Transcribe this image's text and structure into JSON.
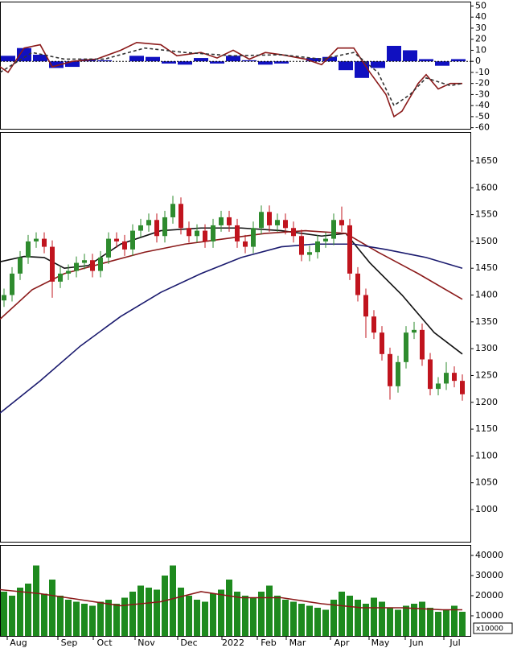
{
  "chart_data": [
    {
      "type": "macd",
      "xlim": [
        0,
        117
      ],
      "ylim": [
        -61,
        54
      ],
      "yticks": [
        50,
        40,
        30,
        20,
        10,
        0,
        -10,
        -20,
        -30,
        -40,
        -50,
        -60
      ],
      "histogram": {
        "color": "#1010c0",
        "x": [
          2,
          6,
          10,
          14,
          18,
          22,
          26,
          30,
          34,
          38,
          42,
          46,
          50,
          54,
          58,
          62,
          66,
          70,
          74,
          78,
          82,
          86,
          90,
          94,
          98,
          102,
          106,
          110,
          114
        ],
        "values": [
          5,
          12,
          6,
          -6,
          -5,
          2,
          1,
          0,
          5,
          4,
          -2,
          -3,
          3,
          -2,
          5,
          1,
          -3,
          -2,
          0,
          3,
          4,
          -8,
          -15,
          -6,
          14,
          10,
          2,
          -4,
          2
        ]
      },
      "lines": [
        {
          "color": "#8b1a1a",
          "dashed": false,
          "x": [
            0,
            2,
            6,
            10,
            13,
            18,
            24,
            30,
            34,
            40,
            44,
            50,
            54,
            58,
            62,
            66,
            70,
            76,
            80,
            84,
            88,
            92,
            96,
            98,
            100,
            104,
            106,
            109,
            112,
            115
          ],
          "values": [
            -5,
            -10,
            12,
            15,
            -5,
            0,
            2,
            10,
            17,
            15,
            5,
            8,
            3,
            10,
            2,
            8,
            6,
            2,
            -3,
            12,
            12,
            -10,
            -30,
            -50,
            -45,
            -20,
            -12,
            -25,
            -20,
            -20
          ]
        },
        {
          "color": "#333333",
          "dashed": true,
          "x": [
            0,
            8,
            16,
            26,
            36,
            46,
            58,
            70,
            80,
            88,
            94,
            98,
            102,
            106,
            112,
            115
          ],
          "values": [
            -10,
            8,
            2,
            2,
            12,
            8,
            5,
            6,
            2,
            8,
            -10,
            -40,
            -30,
            -15,
            -22,
            -20
          ]
        }
      ]
    },
    {
      "type": "candlestick",
      "xlim": [
        0,
        117
      ],
      "ylim": [
        940,
        1704
      ],
      "yticks": [
        1650,
        1600,
        1550,
        1500,
        1450,
        1400,
        1350,
        1300,
        1250,
        1200,
        1150,
        1100,
        1050,
        1000
      ],
      "up_color": "#2e8b2e",
      "down_color": "#c0141e",
      "candles": {
        "x": [
          1,
          3,
          5,
          7,
          9,
          11,
          13,
          15,
          17,
          19,
          21,
          23,
          25,
          27,
          29,
          31,
          33,
          35,
          37,
          39,
          41,
          43,
          45,
          47,
          49,
          51,
          53,
          55,
          57,
          59,
          61,
          63,
          65,
          67,
          69,
          71,
          73,
          75,
          77,
          79,
          81,
          83,
          85,
          87,
          89,
          91,
          93,
          95,
          97,
          99,
          101,
          103,
          105,
          107,
          109,
          111,
          113,
          115
        ],
        "open": [
          1390,
          1400,
          1440,
          1470,
          1500,
          1505,
          1490,
          1425,
          1440,
          1445,
          1460,
          1465,
          1445,
          1470,
          1505,
          1500,
          1485,
          1520,
          1530,
          1540,
          1510,
          1545,
          1570,
          1525,
          1510,
          1520,
          1500,
          1530,
          1545,
          1530,
          1500,
          1490,
          1525,
          1555,
          1530,
          1540,
          1525,
          1510,
          1475,
          1480,
          1500,
          1505,
          1540,
          1530,
          1440,
          1400,
          1360,
          1330,
          1290,
          1230,
          1275,
          1330,
          1335,
          1280,
          1225,
          1235,
          1255,
          1240
        ],
        "high": [
          1412,
          1452,
          1482,
          1512,
          1517,
          1517,
          1502,
          1452,
          1457,
          1472,
          1477,
          1477,
          1482,
          1517,
          1517,
          1512,
          1532,
          1542,
          1552,
          1552,
          1557,
          1585,
          1582,
          1537,
          1532,
          1532,
          1542,
          1557,
          1557,
          1542,
          1512,
          1537,
          1567,
          1567,
          1552,
          1552,
          1537,
          1522,
          1492,
          1512,
          1517,
          1552,
          1565,
          1542,
          1452,
          1412,
          1372,
          1342,
          1302,
          1287,
          1342,
          1350,
          1347,
          1292,
          1247,
          1275,
          1267,
          1252
        ],
        "low": [
          1378,
          1388,
          1428,
          1458,
          1488,
          1478,
          1395,
          1413,
          1428,
          1433,
          1448,
          1433,
          1433,
          1458,
          1488,
          1473,
          1473,
          1508,
          1518,
          1498,
          1498,
          1533,
          1513,
          1498,
          1498,
          1488,
          1488,
          1518,
          1518,
          1488,
          1478,
          1478,
          1513,
          1518,
          1518,
          1513,
          1498,
          1463,
          1463,
          1468,
          1488,
          1493,
          1518,
          1428,
          1388,
          1320,
          1318,
          1278,
          1205,
          1218,
          1263,
          1318,
          1268,
          1213,
          1213,
          1223,
          1228,
          1203
        ],
        "close": [
          1400,
          1440,
          1470,
          1500,
          1505,
          1490,
          1425,
          1440,
          1445,
          1460,
          1465,
          1445,
          1470,
          1505,
          1500,
          1485,
          1520,
          1530,
          1540,
          1510,
          1545,
          1570,
          1525,
          1510,
          1520,
          1500,
          1530,
          1545,
          1530,
          1500,
          1490,
          1525,
          1555,
          1530,
          1540,
          1525,
          1510,
          1475,
          1480,
          1500,
          1505,
          1540,
          1530,
          1440,
          1400,
          1360,
          1330,
          1290,
          1230,
          1275,
          1330,
          1335,
          1280,
          1225,
          1235,
          1255,
          1240,
          1215
        ]
      },
      "lines": [
        {
          "color": "#111111",
          "x": [
            0,
            6,
            11,
            16,
            22,
            30,
            40,
            50,
            60,
            70,
            80,
            86,
            92,
            100,
            108,
            115
          ],
          "values": [
            1462,
            1472,
            1470,
            1450,
            1455,
            1495,
            1520,
            1525,
            1525,
            1520,
            1510,
            1515,
            1460,
            1400,
            1330,
            1290
          ]
        },
        {
          "color": "#8b1a1a",
          "x": [
            0,
            8,
            16,
            26,
            36,
            46,
            56,
            66,
            76,
            86,
            94,
            104,
            115
          ],
          "values": [
            1355,
            1410,
            1440,
            1460,
            1480,
            1495,
            1505,
            1515,
            1520,
            1515,
            1480,
            1440,
            1392
          ]
        },
        {
          "color": "#1a1a6e",
          "x": [
            0,
            10,
            20,
            30,
            40,
            50,
            60,
            70,
            78,
            88,
            96,
            106,
            115
          ],
          "values": [
            1180,
            1240,
            1305,
            1360,
            1405,
            1440,
            1470,
            1490,
            1495,
            1495,
            1485,
            1470,
            1450
          ]
        }
      ]
    },
    {
      "type": "bar",
      "xlim": [
        0,
        117
      ],
      "ylim": [
        0,
        45200
      ],
      "yticks": [
        40000,
        30000,
        20000,
        10000
      ],
      "unit_label": "x10000",
      "color": "#1e8a1e",
      "xticks": [
        {
          "value": 4.6,
          "label": "Aug"
        },
        {
          "value": 17.2,
          "label": "Sep"
        },
        {
          "value": 26,
          "label": "Oct"
        },
        {
          "value": 36.4,
          "label": "Nov"
        },
        {
          "value": 47,
          "label": "Dec"
        },
        {
          "value": 58,
          "label": "2022"
        },
        {
          "value": 66.8,
          "label": "Feb"
        },
        {
          "value": 74,
          "label": "Mar"
        },
        {
          "value": 85,
          "label": "Apr"
        },
        {
          "value": 94.6,
          "label": "May"
        },
        {
          "value": 103.6,
          "label": "Jun"
        },
        {
          "value": 113.2,
          "label": "Jul"
        }
      ],
      "x": [
        1,
        3,
        5,
        7,
        9,
        11,
        13,
        15,
        17,
        19,
        21,
        23,
        25,
        27,
        29,
        31,
        33,
        35,
        37,
        39,
        41,
        43,
        45,
        47,
        49,
        51,
        53,
        55,
        57,
        59,
        61,
        63,
        65,
        67,
        69,
        71,
        73,
        75,
        77,
        79,
        81,
        83,
        85,
        87,
        89,
        91,
        93,
        95,
        97,
        99,
        101,
        103,
        105,
        107,
        109,
        111,
        113,
        115
      ],
      "values": [
        22000,
        20000,
        24000,
        26000,
        35000,
        21000,
        28000,
        20000,
        18000,
        17000,
        16000,
        15000,
        17000,
        18000,
        16000,
        19000,
        22000,
        25000,
        24000,
        23000,
        30000,
        35000,
        24000,
        20000,
        18000,
        17000,
        21000,
        23000,
        28000,
        22000,
        20000,
        19000,
        22000,
        25000,
        20000,
        18000,
        17000,
        16000,
        15000,
        14000,
        13000,
        18000,
        22000,
        20000,
        18000,
        16000,
        19000,
        17000,
        14000,
        13000,
        15000,
        16000,
        17000,
        14000,
        12000,
        13000,
        15000,
        12000
      ],
      "lines": [
        {
          "color": "#8b1a1a",
          "x": [
            0,
            10,
            20,
            30,
            40,
            50,
            60,
            70,
            80,
            90,
            100,
            110,
            115
          ],
          "values": [
            23000,
            21000,
            18000,
            15000,
            17000,
            22000,
            19000,
            19000,
            16000,
            14000,
            14000,
            13000,
            13000
          ]
        }
      ]
    }
  ]
}
